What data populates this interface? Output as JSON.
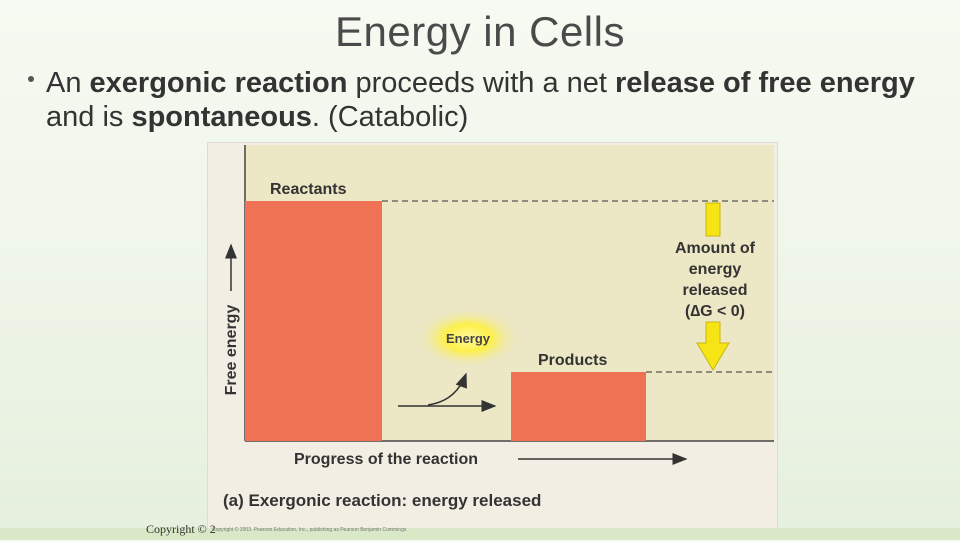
{
  "slide": {
    "title": "Energy in Cells",
    "bullet": {
      "t1": "An ",
      "t2": "exergonic reaction",
      "t3": " proceeds with a net ",
      "t4": "release of free energy",
      "t5": " and is ",
      "t6": "spontaneous",
      "t7": ". (Catabolic)"
    },
    "copyright": "Copyright © 2",
    "copyright_small": "Copyright © 2003. Pearson Education, Inc., publishing as Pearson Benjamin Cummings"
  },
  "figure": {
    "reactants_label": "Reactants",
    "products_label": "Products",
    "energy_label": "Energy",
    "amount_label_1": "Amount of",
    "amount_label_2": "energy",
    "amount_label_3": "released",
    "amount_label_4": "(∆G < 0)",
    "y_axis_label": "Free energy",
    "x_axis_label": "Progress of the reaction",
    "caption": "(a) Exergonic reaction: energy released",
    "colors": {
      "bar": "#f07255",
      "plot_bg": "#ece7c4",
      "arrow_fill": "#f6e415",
      "arrow_stroke": "#cbb60f",
      "glow": "#fdf15a"
    }
  }
}
